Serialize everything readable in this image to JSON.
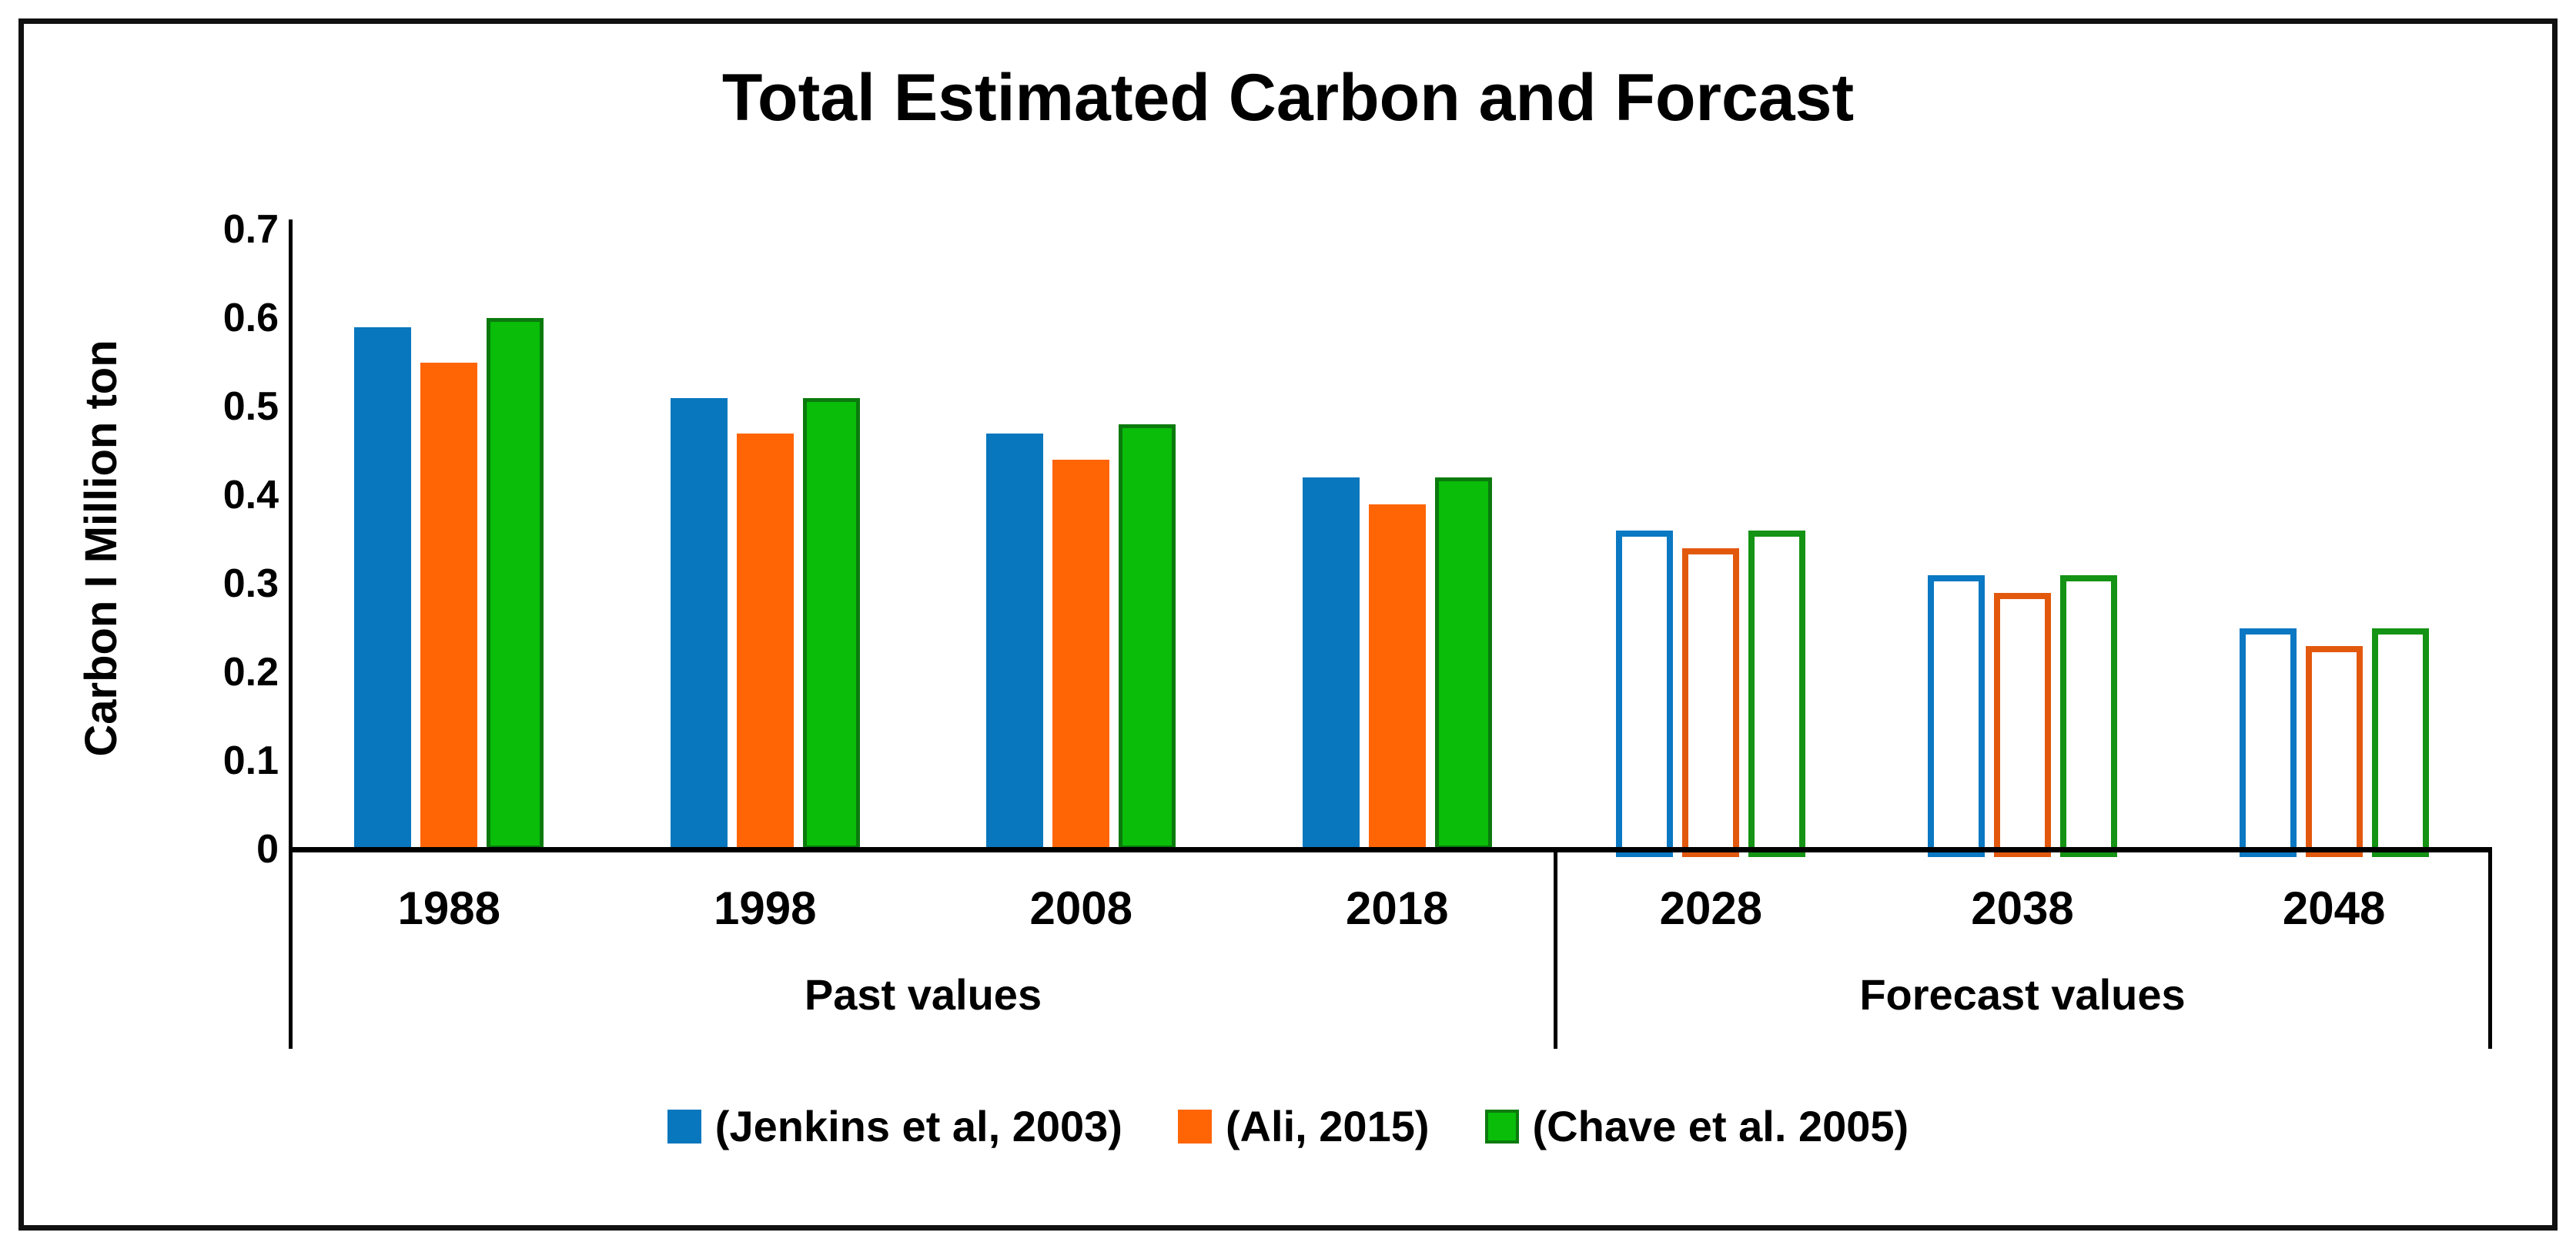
{
  "chart_data": {
    "type": "bar",
    "title": "Total Estimated Carbon and Forcast",
    "xlabel": "",
    "ylabel": "Carbon I Million ton",
    "ylim": [
      0,
      0.7
    ],
    "yticks": [
      "0",
      "0.1",
      "0.2",
      "0.3",
      "0.4",
      "0.5",
      "0.6",
      "0.7"
    ],
    "grid": false,
    "legend_position": "bottom",
    "categories": [
      "1988",
      "1998",
      "2008",
      "2018",
      "2028",
      "2038",
      "2048"
    ],
    "category_groups": [
      {
        "label": "Past values",
        "categories": [
          "1988",
          "1998",
          "2008",
          "2018"
        ],
        "count": 4,
        "bar_style": "filled"
      },
      {
        "label": "Forecast values",
        "categories": [
          "2028",
          "2038",
          "2048"
        ],
        "count": 3,
        "bar_style": "outlined"
      }
    ],
    "forecast_from_index": 4,
    "series": [
      {
        "name": "(Jenkins et al, 2003)",
        "color": "#0877BD",
        "outline_color": "#0A78C2",
        "values": [
          0.59,
          0.51,
          0.47,
          0.42,
          0.36,
          0.31,
          0.25
        ]
      },
      {
        "name": "(Ali, 2015)",
        "color": "#FF6505",
        "outline_color": "#E2590E",
        "values": [
          0.55,
          0.47,
          0.44,
          0.39,
          0.34,
          0.29,
          0.23
        ]
      },
      {
        "name": "(Chave et al. 2005)",
        "color": "#09BD09",
        "edge_color": "#0B7A0D",
        "outline_color": "#149314",
        "values": [
          0.6,
          0.51,
          0.48,
          0.42,
          0.36,
          0.31,
          0.25
        ]
      }
    ]
  }
}
